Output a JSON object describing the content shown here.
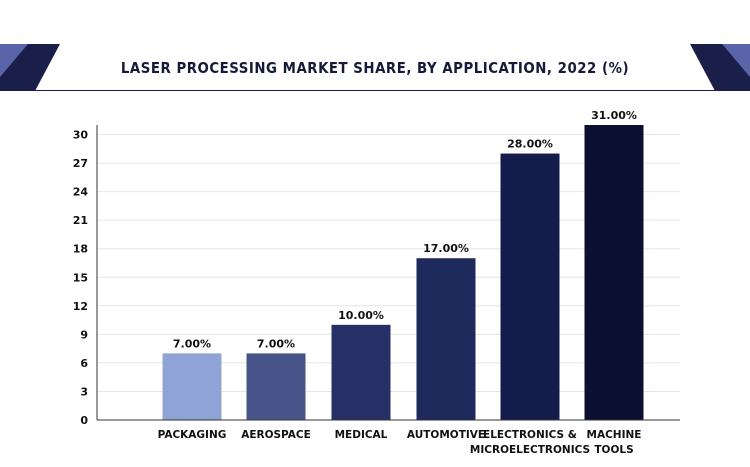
{
  "chart_data": {
    "type": "bar",
    "title": "LASER PROCESSING MARKET SHARE, BY APPLICATION, 2022 (%)",
    "categories": [
      [
        "PACKAGING"
      ],
      [
        "AEROSPACE"
      ],
      [
        "MEDICAL"
      ],
      [
        "AUTOMOTIVE"
      ],
      [
        "ELECTRONICS &",
        "MICROELECTRONICS"
      ],
      [
        "MACHINE",
        "TOOLS"
      ]
    ],
    "values": [
      7,
      7,
      10,
      17,
      28,
      31
    ],
    "data_labels": [
      "7.00%",
      "7.00%",
      "10.00%",
      "17.00%",
      "28.00%",
      "31.00%"
    ],
    "bar_colors": [
      "#8fa3d6",
      "#475489",
      "#262f66",
      "#1e2a5c",
      "#141c4c",
      "#0c1030"
    ],
    "yticks": [
      0,
      3,
      6,
      9,
      12,
      15,
      18,
      21,
      24,
      27,
      30
    ],
    "ylim": [
      0,
      31
    ],
    "xlabel": "",
    "ylabel": "",
    "grid": true,
    "legend": "none"
  },
  "colors": {
    "banner_accent": "#1a1f4a",
    "grid": "#e6e6e6",
    "axis": "#333333"
  }
}
